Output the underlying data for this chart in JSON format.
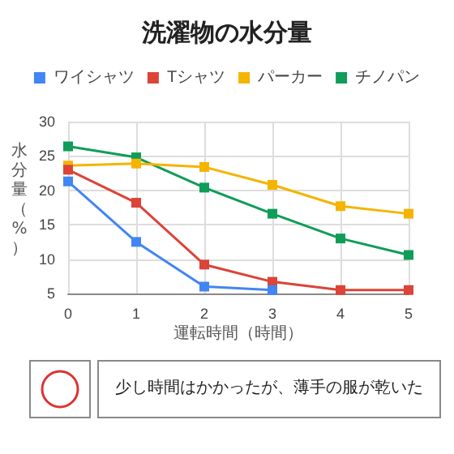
{
  "chart_data": {
    "type": "line",
    "title": "洗濯物の水分量",
    "xlabel": "運転時間（時間）",
    "ylabel": "水分量（%）",
    "x": [
      0,
      1,
      2,
      3,
      4,
      5
    ],
    "xlim": [
      0,
      5
    ],
    "xticks": [
      0,
      1,
      2,
      3,
      4,
      5
    ],
    "ylim": [
      5,
      30
    ],
    "yticks": [
      5,
      10,
      15,
      20,
      25,
      30
    ],
    "series": [
      {
        "name": "ワイシャツ",
        "color": "#4285f4",
        "values": [
          21.3,
          12.5,
          6,
          5.5,
          null,
          null
        ]
      },
      {
        "name": "Tシャツ",
        "color": "#db4437",
        "values": [
          23,
          18.2,
          9.2,
          6.7,
          5.5,
          5.5
        ]
      },
      {
        "name": "パーカー",
        "color": "#f4b400",
        "values": [
          23.6,
          23.9,
          23.4,
          20.8,
          17.7,
          16.6
        ]
      },
      {
        "name": "チノパン",
        "color": "#0f9d58",
        "values": [
          26.4,
          24.8,
          20.4,
          16.6,
          13,
          10.6
        ]
      }
    ],
    "grid": true,
    "legend": "top",
    "marker": "square",
    "line_style": "solid",
    "annotations": [
      "少し時間はかかったが、薄手の服が乾いた"
    ]
  }
}
